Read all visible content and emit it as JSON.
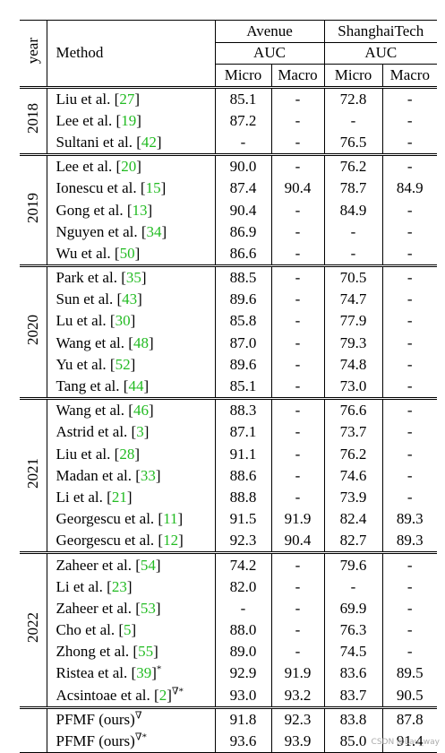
{
  "header": {
    "year": "year",
    "method": "Method",
    "datasets": [
      {
        "name": "Avenue",
        "metric": "AUC",
        "columns": [
          "Micro",
          "Macro"
        ]
      },
      {
        "name": "ShanghaiTech",
        "metric": "AUC",
        "columns": [
          "Micro",
          "Macro"
        ]
      }
    ]
  },
  "groups": [
    {
      "year": "2018",
      "rows": [
        {
          "method": "Liu et al. [27]",
          "values": [
            "85.1",
            "-",
            "72.8",
            "-"
          ]
        },
        {
          "method": "Lee et al. [19]",
          "values": [
            "87.2",
            "-",
            "-",
            "-"
          ]
        },
        {
          "method": "Sultani et al. [42]",
          "values": [
            "-",
            "-",
            "76.5",
            "-"
          ]
        }
      ]
    },
    {
      "year": "2019",
      "rows": [
        {
          "method": "Lee et al. [20]",
          "values": [
            "90.0",
            "-",
            "76.2",
            "-"
          ]
        },
        {
          "method": "Ionescu et al. [15]",
          "values": [
            "87.4",
            "90.4",
            "78.7",
            "84.9"
          ]
        },
        {
          "method": "Gong et al. [13]",
          "values": [
            "90.4",
            "-",
            "84.9",
            "-"
          ]
        },
        {
          "method": "Nguyen et al. [34]",
          "values": [
            "86.9",
            "-",
            "-",
            "-"
          ]
        },
        {
          "method": "Wu et al. [50]",
          "values": [
            "86.6",
            "-",
            "-",
            "-"
          ]
        }
      ]
    },
    {
      "year": "2020",
      "rows": [
        {
          "method": "Park et al. [35]",
          "values": [
            "88.5",
            "-",
            "70.5",
            "-"
          ]
        },
        {
          "method": "Sun et al. [43]",
          "values": [
            "89.6",
            "-",
            "74.7",
            "-"
          ]
        },
        {
          "method": "Lu et al. [30]",
          "values": [
            "85.8",
            "-",
            "77.9",
            "-"
          ]
        },
        {
          "method": "Wang et al. [48]",
          "values": [
            "87.0",
            "-",
            "79.3",
            "-"
          ]
        },
        {
          "method": "Yu et al. [52]",
          "values": [
            "89.6",
            "-",
            "74.8",
            "-"
          ]
        },
        {
          "method": "Tang et al. [44]",
          "values": [
            "85.1",
            "-",
            "73.0",
            "-"
          ]
        }
      ]
    },
    {
      "year": "2021",
      "rows": [
        {
          "method": "Wang et al. [46]",
          "values": [
            "88.3",
            "-",
            "76.6",
            "-"
          ]
        },
        {
          "method": "Astrid et al. [3]",
          "values": [
            "87.1",
            "-",
            "73.7",
            "-"
          ]
        },
        {
          "method": "Liu et al. [28]",
          "values": [
            "91.1",
            "-",
            "76.2",
            "-"
          ]
        },
        {
          "method": "Madan et al. [33]",
          "values": [
            "88.6",
            "-",
            "74.6",
            "-"
          ]
        },
        {
          "method": "Li et al. [21]",
          "values": [
            "88.8",
            "-",
            "73.9",
            "-"
          ]
        },
        {
          "method": "Georgescu et al. [11]",
          "values": [
            "91.5",
            "91.9",
            "82.4",
            "89.3"
          ]
        },
        {
          "method": "Georgescu et al. [12]",
          "values": [
            "92.3",
            "90.4",
            "82.7",
            "89.3"
          ]
        }
      ]
    },
    {
      "year": "2022",
      "rows": [
        {
          "method": "Zaheer et al. [54]",
          "values": [
            "74.2",
            "-",
            "79.6",
            "-"
          ]
        },
        {
          "method": "Li et al. [23]",
          "values": [
            "82.0",
            "-",
            "-",
            "-"
          ]
        },
        {
          "method": "Zaheer et al. [53]",
          "values": [
            "-",
            "-",
            "69.9",
            "-"
          ]
        },
        {
          "method": "Cho et al. [5]",
          "values": [
            "88.0",
            "-",
            "76.3",
            "-"
          ]
        },
        {
          "method": "Zhong et al. [55]",
          "values": [
            "89.0",
            "-",
            "74.5",
            "-"
          ]
        },
        {
          "method": "Ristea et al. [39]*",
          "values": [
            "92.9",
            "91.9",
            "83.6",
            "89.5"
          ]
        },
        {
          "method": "Acsintoae et al. [2]∇*",
          "values": [
            "93.0",
            "93.2",
            "83.7",
            "90.5"
          ]
        }
      ]
    },
    {
      "rows": [
        {
          "method": "PFMF (ours)∇",
          "values": [
            "91.8",
            "92.3",
            "83.8",
            "87.8"
          ],
          "bold": true
        },
        {
          "method": "PFMF (ours)∇*",
          "values": [
            "93.6",
            "93.9",
            "85.0",
            "91.4"
          ],
          "bold": true
        }
      ]
    }
  ],
  "watermark": "CSDN @Lau_way"
}
